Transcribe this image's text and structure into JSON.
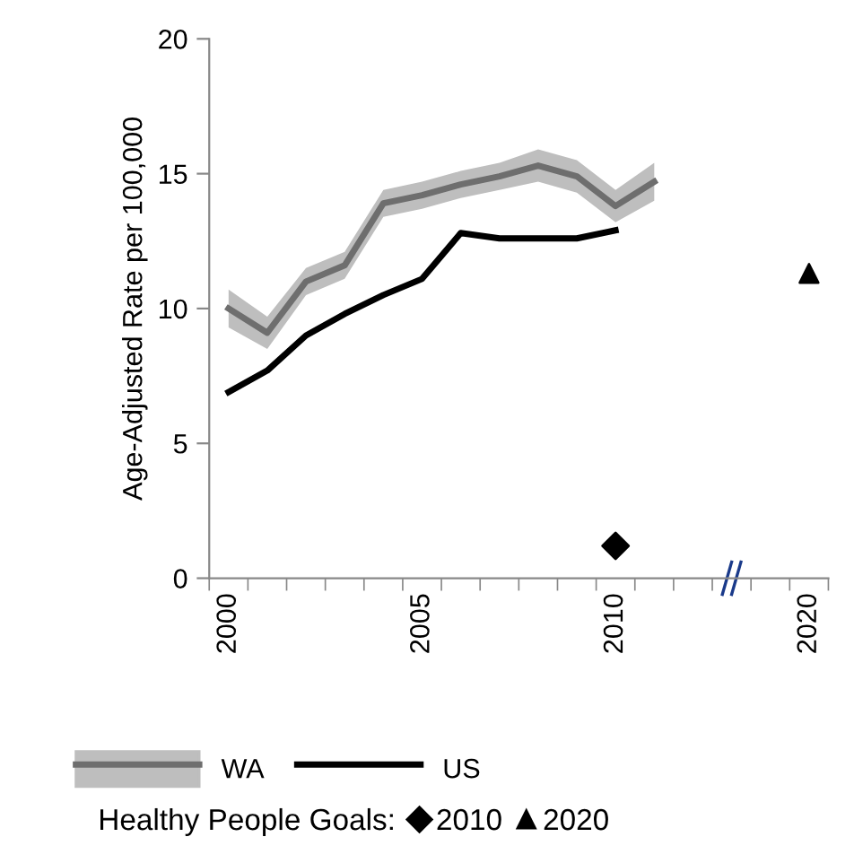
{
  "chart_data": {
    "type": "line",
    "ylabel": "Age-Adjusted Rate per 100,000",
    "categories": [
      "2000",
      null,
      null,
      null,
      null,
      "2005",
      null,
      null,
      null,
      null,
      "2010",
      null,
      null,
      null,
      null,
      "2020"
    ],
    "ylim": [
      0,
      20
    ],
    "yticks": [
      0,
      5,
      10,
      15,
      20
    ],
    "grid": false,
    "legend": "bottom",
    "legend_title": "Healthy People Goals:",
    "series": [
      {
        "name": "WA",
        "color": "#6e6e6e",
        "values": [
          10.0,
          9.1,
          11.0,
          11.6,
          13.9,
          14.2,
          14.6,
          14.9,
          15.3,
          14.9,
          13.8,
          14.7,
          null,
          null,
          null,
          null
        ],
        "lower": [
          9.3,
          8.5,
          10.5,
          11.1,
          13.4,
          13.7,
          14.1,
          14.4,
          14.7,
          14.3,
          13.2,
          14.0,
          null,
          null,
          null,
          null
        ],
        "upper": [
          10.7,
          9.7,
          11.5,
          12.1,
          14.4,
          14.7,
          15.1,
          15.4,
          15.9,
          15.5,
          14.4,
          15.4,
          null,
          null,
          null,
          null
        ]
      },
      {
        "name": "US",
        "color": "#000000",
        "values": [
          6.9,
          7.7,
          9.0,
          9.8,
          10.5,
          11.1,
          12.8,
          12.6,
          12.6,
          12.6,
          12.9,
          null,
          null,
          null,
          null,
          null
        ]
      },
      {
        "name": "2010",
        "type": "scatter",
        "marker": "diamond",
        "color": "#000000",
        "values": [
          null,
          null,
          null,
          null,
          null,
          null,
          null,
          null,
          null,
          null,
          1.2,
          null,
          null,
          null,
          null,
          null
        ]
      },
      {
        "name": "2020",
        "type": "scatter",
        "marker": "triangle",
        "color": "#000000",
        "values": [
          null,
          null,
          null,
          null,
          null,
          null,
          null,
          null,
          null,
          null,
          null,
          null,
          null,
          null,
          null,
          11.3
        ]
      }
    ]
  }
}
